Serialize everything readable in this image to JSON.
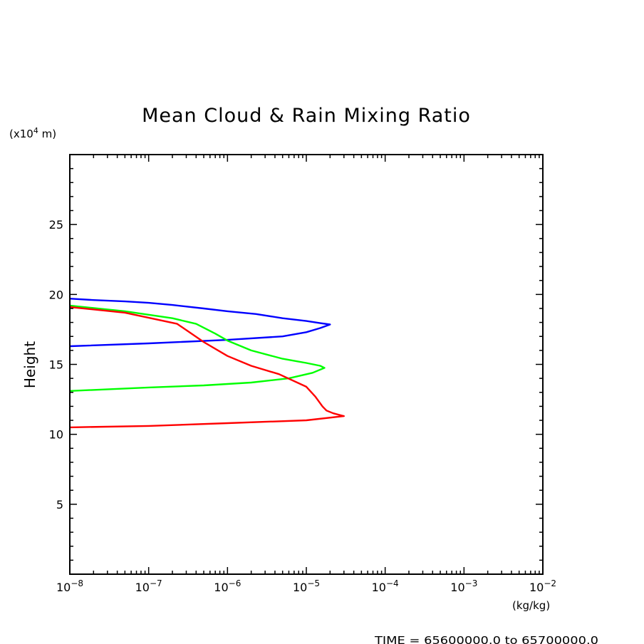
{
  "chart_data": {
    "type": "line",
    "title": "Mean Cloud & Rain Mixing Ratio",
    "ylabel": "Height",
    "y_units": "(x10",
    "y_units_exp": "4",
    "y_units_suffix": " m)",
    "x_units": "(kg/kg)",
    "footer": "TIME = 65600000.0 to 65700000.0",
    "x_scale": "log",
    "xlim": [
      1e-08,
      0.01
    ],
    "ylim": [
      0,
      30
    ],
    "x_ticks": [
      {
        "base": "10",
        "exp": "−8",
        "value": 1e-08
      },
      {
        "base": "10",
        "exp": "−7",
        "value": 1e-07
      },
      {
        "base": "10",
        "exp": "−6",
        "value": 1e-06
      },
      {
        "base": "10",
        "exp": "−5",
        "value": 1e-05
      },
      {
        "base": "10",
        "exp": "−4",
        "value": 0.0001
      },
      {
        "base": "10",
        "exp": "−3",
        "value": 0.001
      },
      {
        "base": "10",
        "exp": "−2",
        "value": 0.01
      }
    ],
    "y_ticks": [
      "5",
      "10",
      "15",
      "20",
      "25"
    ],
    "grid": false,
    "series": [
      {
        "color": "#0000ff",
        "points": [
          [
            1e-08,
            19.7
          ],
          [
            2e-08,
            19.6
          ],
          [
            5e-08,
            19.5
          ],
          [
            1e-07,
            19.4
          ],
          [
            2e-07,
            19.25
          ],
          [
            5e-07,
            19.0
          ],
          [
            1e-06,
            18.8
          ],
          [
            2.3e-06,
            18.6
          ],
          [
            5e-06,
            18.3
          ],
          [
            1e-05,
            18.1
          ],
          [
            1.5e-05,
            17.95
          ],
          [
            2e-05,
            17.85
          ],
          [
            1.5e-05,
            17.6
          ],
          [
            1e-05,
            17.3
          ],
          [
            5e-06,
            17.0
          ],
          [
            1e-06,
            16.75
          ],
          [
            1e-07,
            16.5
          ],
          [
            1e-08,
            16.3
          ]
        ]
      },
      {
        "color": "#00ff00",
        "points": [
          [
            1e-08,
            19.2
          ],
          [
            5e-08,
            18.8
          ],
          [
            2e-07,
            18.3
          ],
          [
            4e-07,
            17.9
          ],
          [
            7e-07,
            17.2
          ],
          [
            1e-06,
            16.7
          ],
          [
            2e-06,
            16.0
          ],
          [
            5e-06,
            15.4
          ],
          [
            1e-05,
            15.1
          ],
          [
            1.5e-05,
            14.9
          ],
          [
            1.7e-05,
            14.75
          ],
          [
            1.2e-05,
            14.4
          ],
          [
            6e-06,
            14.0
          ],
          [
            2e-06,
            13.7
          ],
          [
            5e-07,
            13.5
          ],
          [
            1e-07,
            13.35
          ],
          [
            1e-08,
            13.1
          ]
        ]
      },
      {
        "color": "#ff0000",
        "points": [
          [
            1e-08,
            19.1
          ],
          [
            5e-08,
            18.7
          ],
          [
            2.3e-07,
            17.9
          ],
          [
            5e-07,
            16.6
          ],
          [
            1e-06,
            15.6
          ],
          [
            2e-06,
            14.9
          ],
          [
            4.5e-06,
            14.3
          ],
          [
            1e-05,
            13.4
          ],
          [
            1.3e-05,
            12.7
          ],
          [
            1.6e-05,
            12.0
          ],
          [
            1.8e-05,
            11.7
          ],
          [
            2.2e-05,
            11.5
          ],
          [
            3e-05,
            11.3
          ],
          [
            1e-05,
            11.0
          ],
          [
            1e-06,
            10.8
          ],
          [
            1e-07,
            10.6
          ],
          [
            1e-08,
            10.5
          ]
        ]
      }
    ]
  }
}
